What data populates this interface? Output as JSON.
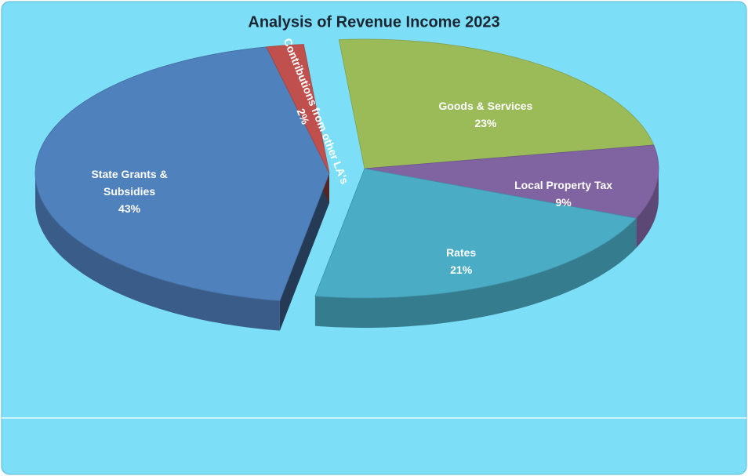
{
  "chart_data": {
    "type": "pie",
    "title": "Analysis of Revenue Income 2023",
    "categories": [
      "Goods & Services",
      "Local Property Tax",
      "Rates",
      "State Grants & Subsidies",
      "Contributions from other LA's"
    ],
    "values": [
      23,
      9,
      21,
      43,
      2
    ],
    "value_labels": [
      "23%",
      "9%",
      "21%",
      "43%",
      "2%"
    ],
    "colors": [
      "#9bbb59",
      "#8064a2",
      "#4bacc6",
      "#4f81bd",
      "#c0504d"
    ]
  }
}
